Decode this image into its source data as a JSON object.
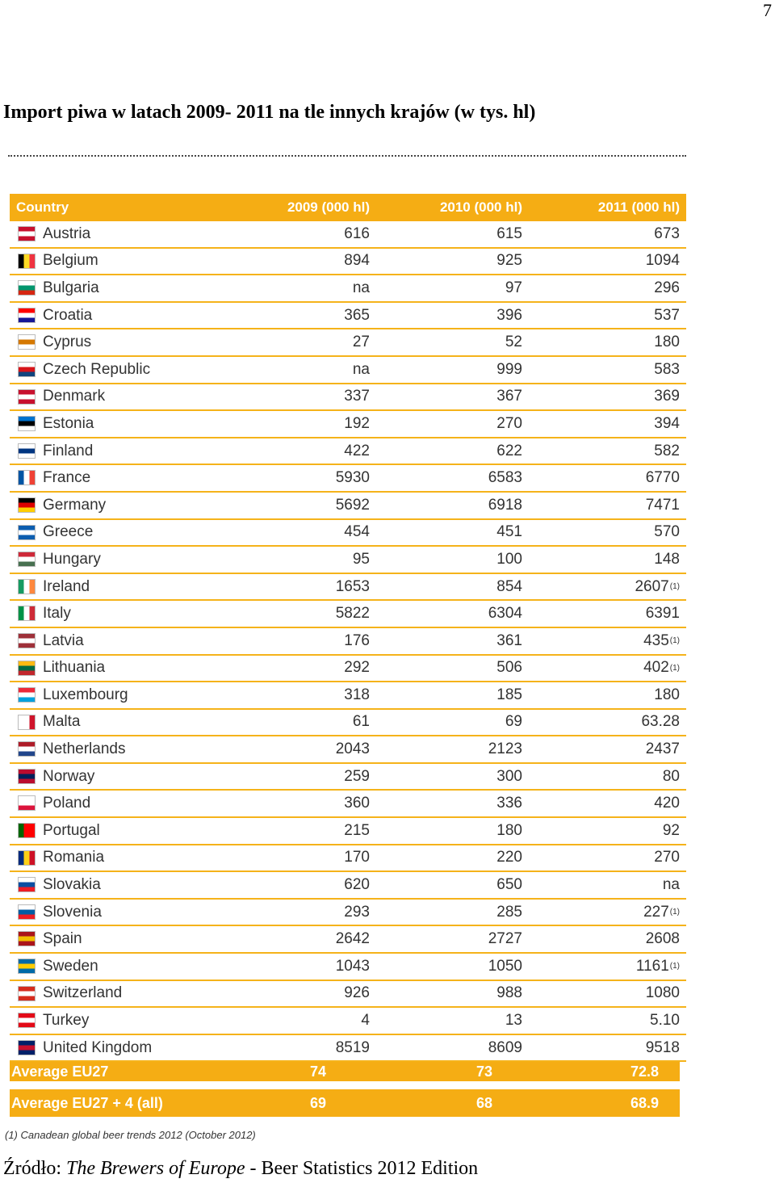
{
  "page_number": "7",
  "title": "Import piwa w latach 2009- 2011 na tle innych krajów (w tys. hl)",
  "table": {
    "headers": [
      "Country",
      "2009 (000 hl)",
      "2010 (000 hl)",
      "2011 (000 hl)"
    ],
    "rows": [
      {
        "country": "Austria",
        "v2009": "616",
        "v2010": "615",
        "v2011": "673",
        "fn": "",
        "flag": [
          "#c8102e",
          "#ffffff",
          "#c8102e"
        ],
        "dir": "h"
      },
      {
        "country": "Belgium",
        "v2009": "894",
        "v2010": "925",
        "v2011": "1094",
        "fn": "",
        "flag": [
          "#000000",
          "#fdda24",
          "#ef3340"
        ],
        "dir": "v"
      },
      {
        "country": "Bulgaria",
        "v2009": "na",
        "v2010": "97",
        "v2011": "296",
        "fn": "",
        "flag": [
          "#ffffff",
          "#00966e",
          "#d62612"
        ],
        "dir": "h"
      },
      {
        "country": "Croatia",
        "v2009": "365",
        "v2010": "396",
        "v2011": "537",
        "fn": "",
        "flag": [
          "#ff0000",
          "#ffffff",
          "#171796"
        ],
        "dir": "h"
      },
      {
        "country": "Cyprus",
        "v2009": "27",
        "v2010": "52",
        "v2011": "180",
        "fn": "",
        "flag": [
          "#ffffff",
          "#d57800",
          "#ffffff"
        ],
        "dir": "h"
      },
      {
        "country": "Czech Republic",
        "v2009": "na",
        "v2010": "999",
        "v2011": "583",
        "fn": "",
        "flag": [
          "#ffffff",
          "#d7141a",
          "#11457e"
        ],
        "dir": "h"
      },
      {
        "country": "Denmark",
        "v2009": "337",
        "v2010": "367",
        "v2011": "369",
        "fn": "",
        "flag": [
          "#c8102e",
          "#ffffff",
          "#c8102e"
        ],
        "dir": "h"
      },
      {
        "country": "Estonia",
        "v2009": "192",
        "v2010": "270",
        "v2011": "394",
        "fn": "",
        "flag": [
          "#0072ce",
          "#000000",
          "#ffffff"
        ],
        "dir": "h"
      },
      {
        "country": "Finland",
        "v2009": "422",
        "v2010": "622",
        "v2011": "582",
        "fn": "",
        "flag": [
          "#ffffff",
          "#003580",
          "#ffffff"
        ],
        "dir": "h"
      },
      {
        "country": "France",
        "v2009": "5930",
        "v2010": "6583",
        "v2011": "6770",
        "fn": "",
        "flag": [
          "#0055a4",
          "#ffffff",
          "#ef4135"
        ],
        "dir": "v"
      },
      {
        "country": "Germany",
        "v2009": "5692",
        "v2010": "6918",
        "v2011": "7471",
        "fn": "",
        "flag": [
          "#000000",
          "#dd0000",
          "#ffce00"
        ],
        "dir": "h"
      },
      {
        "country": "Greece",
        "v2009": "454",
        "v2010": "451",
        "v2011": "570",
        "fn": "",
        "flag": [
          "#0d5eaf",
          "#ffffff",
          "#0d5eaf"
        ],
        "dir": "h"
      },
      {
        "country": "Hungary",
        "v2009": "95",
        "v2010": "100",
        "v2011": "148",
        "fn": "",
        "flag": [
          "#ce2939",
          "#ffffff",
          "#477050"
        ],
        "dir": "h"
      },
      {
        "country": "Ireland",
        "v2009": "1653",
        "v2010": "854",
        "v2011": "2607",
        "fn": "(1)",
        "flag": [
          "#169b62",
          "#ffffff",
          "#ff883e"
        ],
        "dir": "v"
      },
      {
        "country": "Italy",
        "v2009": "5822",
        "v2010": "6304",
        "v2011": "6391",
        "fn": "",
        "flag": [
          "#009246",
          "#ffffff",
          "#ce2b37"
        ],
        "dir": "v"
      },
      {
        "country": "Latvia",
        "v2009": "176",
        "v2010": "361",
        "v2011": "435",
        "fn": "(1)",
        "flag": [
          "#9e3039",
          "#ffffff",
          "#9e3039"
        ],
        "dir": "h"
      },
      {
        "country": "Lithuania",
        "v2009": "292",
        "v2010": "506",
        "v2011": "402",
        "fn": "(1)",
        "flag": [
          "#fdb913",
          "#006a44",
          "#c1272d"
        ],
        "dir": "h"
      },
      {
        "country": "Luxembourg",
        "v2009": "318",
        "v2010": "185",
        "v2011": "180",
        "fn": "",
        "flag": [
          "#ed2939",
          "#ffffff",
          "#00a1de"
        ],
        "dir": "h"
      },
      {
        "country": "Malta",
        "v2009": "61",
        "v2010": "69",
        "v2011": "63.28",
        "fn": "",
        "flag": [
          "#ffffff",
          "#ffffff",
          "#cf142b"
        ],
        "dir": "v"
      },
      {
        "country": "Netherlands",
        "v2009": "2043",
        "v2010": "2123",
        "v2011": "2437",
        "fn": "",
        "flag": [
          "#ae1c28",
          "#ffffff",
          "#21468b"
        ],
        "dir": "h"
      },
      {
        "country": "Norway",
        "v2009": "259",
        "v2010": "300",
        "v2011": "80",
        "fn": "",
        "flag": [
          "#ba0c2f",
          "#00205b",
          "#ba0c2f"
        ],
        "dir": "h"
      },
      {
        "country": "Poland",
        "v2009": "360",
        "v2010": "336",
        "v2011": "420",
        "fn": "",
        "flag": [
          "#ffffff",
          "#ffffff",
          "#dc143c"
        ],
        "dir": "h"
      },
      {
        "country": "Portugal",
        "v2009": "215",
        "v2010": "180",
        "v2011": "92",
        "fn": "",
        "flag": [
          "#006600",
          "#ff0000",
          "#ff0000"
        ],
        "dir": "v"
      },
      {
        "country": "Romania",
        "v2009": "170",
        "v2010": "220",
        "v2011": "270",
        "fn": "",
        "flag": [
          "#002b7f",
          "#fcd116",
          "#ce1126"
        ],
        "dir": "v"
      },
      {
        "country": "Slovakia",
        "v2009": "620",
        "v2010": "650",
        "v2011": "na",
        "fn": "",
        "flag": [
          "#ffffff",
          "#0b4ea2",
          "#ee1c25"
        ],
        "dir": "h"
      },
      {
        "country": "Slovenia",
        "v2009": "293",
        "v2010": "285",
        "v2011": "227",
        "fn": "(1)",
        "flag": [
          "#ffffff",
          "#005da4",
          "#ed1c24"
        ],
        "dir": "h"
      },
      {
        "country": "Spain",
        "v2009": "2642",
        "v2010": "2727",
        "v2011": "2608",
        "fn": "",
        "flag": [
          "#aa151b",
          "#f1bf00",
          "#aa151b"
        ],
        "dir": "h"
      },
      {
        "country": "Sweden",
        "v2009": "1043",
        "v2010": "1050",
        "v2011": "1161",
        "fn": "(1)",
        "flag": [
          "#006aa7",
          "#fecc00",
          "#006aa7"
        ],
        "dir": "h"
      },
      {
        "country": "Switzerland",
        "v2009": "926",
        "v2010": "988",
        "v2011": "1080",
        "fn": "",
        "flag": [
          "#d52b1e",
          "#ffffff",
          "#d52b1e"
        ],
        "dir": "h"
      },
      {
        "country": "Turkey",
        "v2009": "4",
        "v2010": "13",
        "v2011": "5.10",
        "fn": "",
        "flag": [
          "#e30a17",
          "#ffffff",
          "#e30a17"
        ],
        "dir": "h"
      },
      {
        "country": "United Kingdom",
        "v2009": "8519",
        "v2010": "8609",
        "v2011": "9518",
        "fn": "",
        "flag": [
          "#012169",
          "#c8102e",
          "#012169"
        ],
        "dir": "h"
      }
    ],
    "averages": [
      {
        "label": "Average EU27",
        "v2009": "74",
        "v2010": "73",
        "v2011": "72.8"
      },
      {
        "label": "Average EU27 + 4 (all)",
        "v2009": "69",
        "v2010": "68",
        "v2011": "68.9"
      }
    ]
  },
  "footnote": "(1) Canadean global beer trends 2012 (October 2012)",
  "source": {
    "prefix": "Źródło: ",
    "italic": "The Brewers of Europe",
    "suffix": " - Beer Statistics 2012 Edition"
  }
}
